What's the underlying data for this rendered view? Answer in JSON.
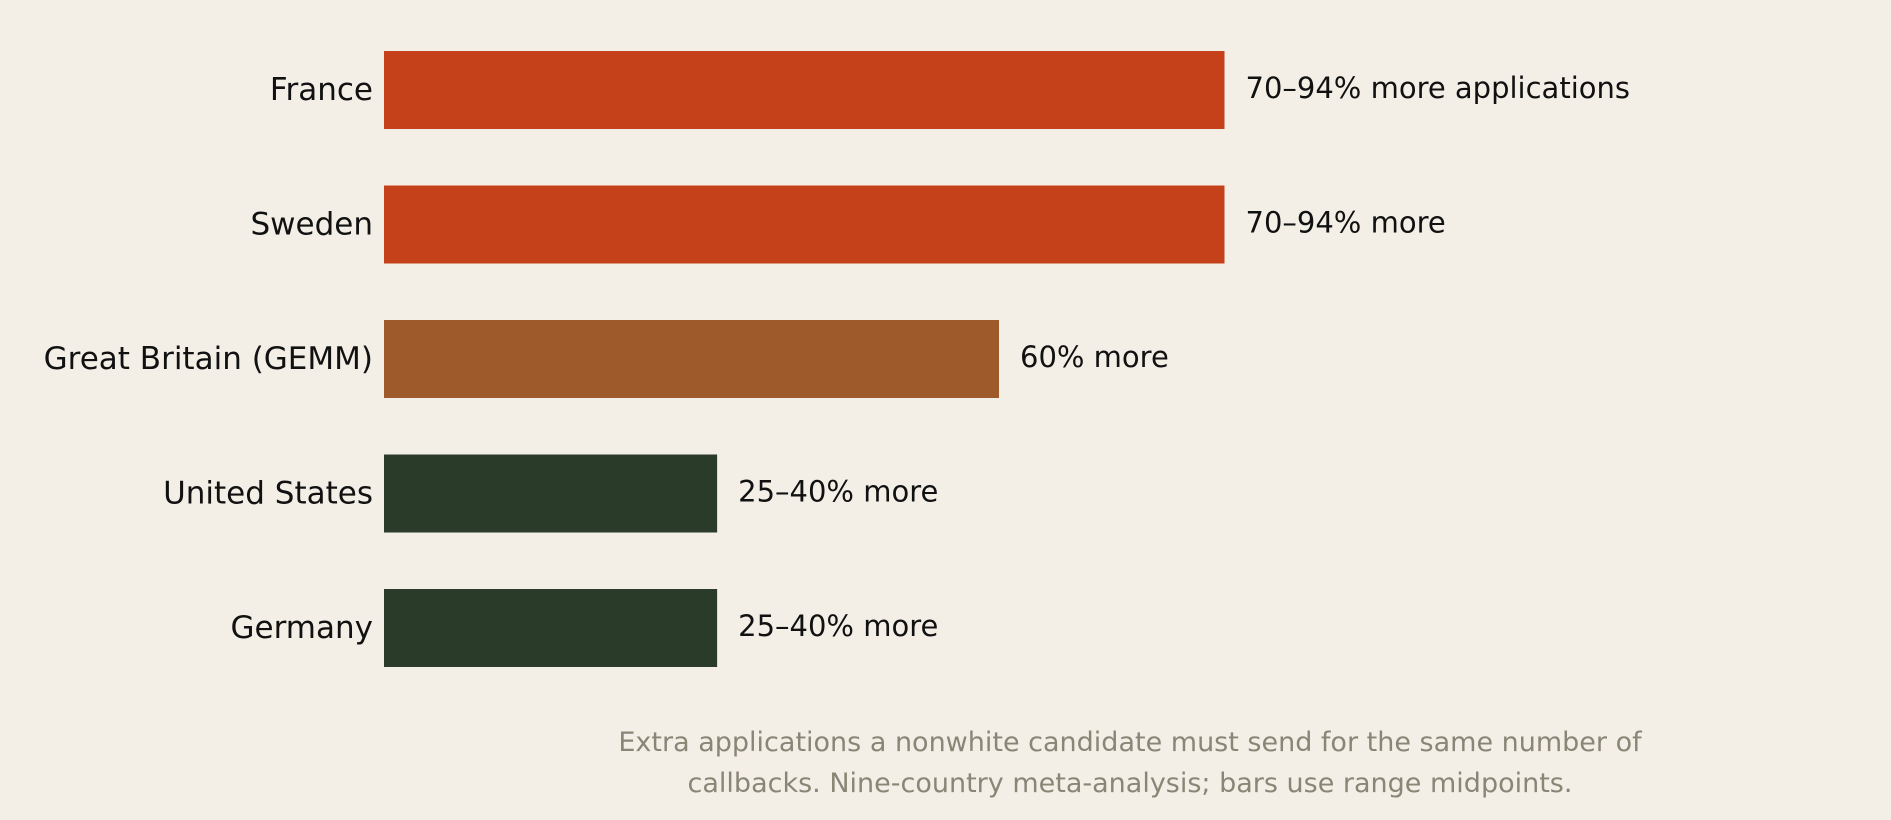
{
  "chart_data": {
    "type": "bar",
    "orientation": "horizontal",
    "categories": [
      "France",
      "Sweden",
      "Great Britain (GEMM)",
      "United States",
      "Germany"
    ],
    "values": [
      82,
      82,
      60,
      32.5,
      32.5
    ],
    "value_labels": [
      "70–94% more applications",
      "70–94% more",
      "60% more",
      "25–40% more",
      "25–40% more"
    ],
    "colors": [
      "#c5411a",
      "#c5411a",
      "#9e5a2b",
      "#2a3b2a",
      "#2a3b2a"
    ],
    "xlim": [
      0,
      100
    ],
    "grid": false,
    "legend": "none"
  },
  "caption": {
    "line1": "Extra applications a nonwhite candidate must send for the same number of",
    "line2": "callbacks. Nine-country meta-analysis; bars use range midpoints."
  }
}
